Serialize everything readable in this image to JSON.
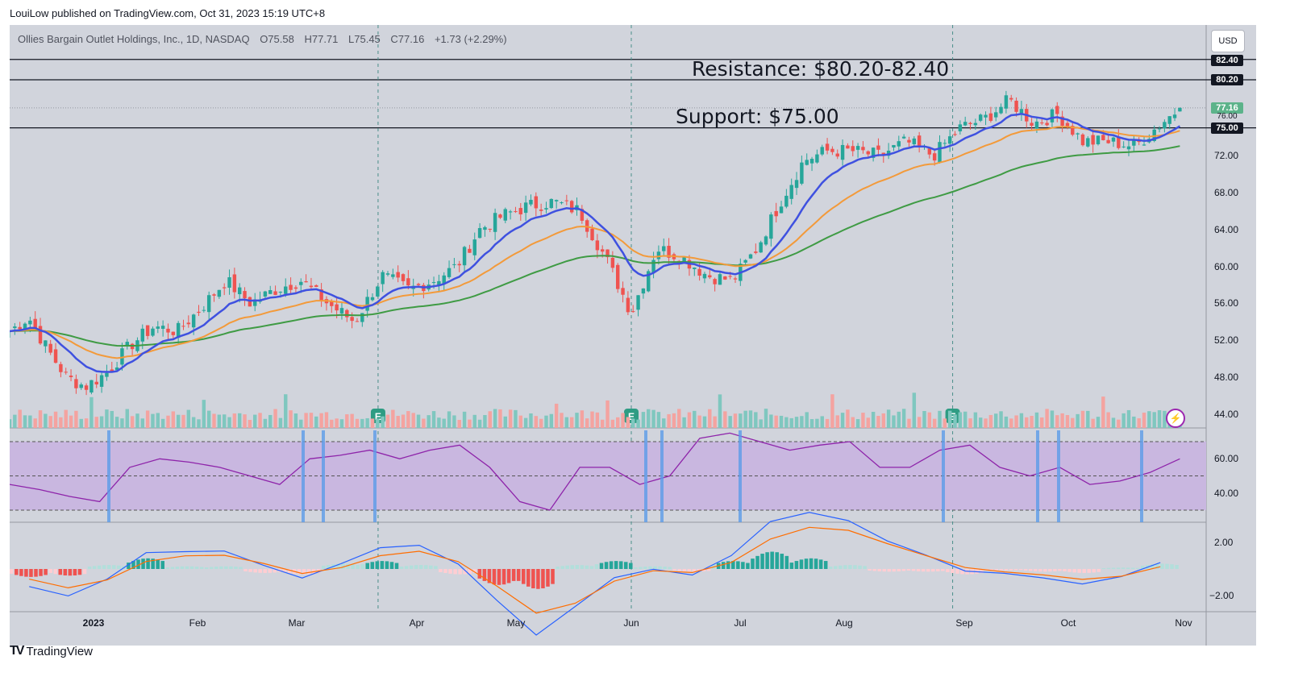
{
  "header": {
    "published_by": "LouiLow published on TradingView.com, Oct 31, 2023 15:19 UTC+8"
  },
  "legend": {
    "symbol": "Ollies Bargain Outlet Holdings, Inc., 1D, NASDAQ",
    "open": "O75.58",
    "high": "H77.71",
    "low": "L75.45",
    "close": "C77.16",
    "change": "+1.73 (+2.29%)"
  },
  "currency_button": "USD",
  "annotations": {
    "resistance": "Resistance: $80.20-82.40",
    "support": "Support: $75.00"
  },
  "price_tags": {
    "r2": "82.40",
    "r1": "80.20",
    "last": "77.16",
    "partial": "76.00",
    "support": "75.00"
  },
  "brand": {
    "name": "TradingView",
    "logo": "TV"
  },
  "colors": {
    "up": "#26a69a",
    "down": "#ef5350",
    "ema_fast": "#3f51e0",
    "ema_mid": "#f39a3a",
    "ema_slow": "#3f9b44",
    "rsi": "#8e24aa",
    "macd": "#2962ff",
    "signal": "#ff6d00"
  },
  "chart_data": [
    {
      "type": "candlestick",
      "title": "Ollies Bargain Outlet Holdings, Inc., 1D, NASDAQ",
      "y_axis_ticks": [
        44,
        48,
        52,
        56,
        60,
        64,
        68,
        72,
        76
      ],
      "ylim": [
        42.8,
        86.3
      ],
      "x_axis_ticks": [
        "2023",
        "Feb",
        "Mar",
        "Apr",
        "May",
        "Jun",
        "Jul",
        "Aug",
        "Sep",
        "Oct",
        "Nov"
      ],
      "horizontal_levels": [
        82.4,
        80.2,
        75.0
      ],
      "last_price": 77.16,
      "earnings_markers": [
        "Mar 22",
        "Jun 1",
        "Aug 29"
      ],
      "approx_close_path": [
        {
          "date": "2022-12-01",
          "close": 53.0
        },
        {
          "date": "2022-12-08",
          "close": 54.5
        },
        {
          "date": "2022-12-15",
          "close": 51.0
        },
        {
          "date": "2022-12-22",
          "close": 48.0
        },
        {
          "date": "2022-12-29",
          "close": 47.0
        },
        {
          "date": "2023-01-05",
          "close": 48.5
        },
        {
          "date": "2023-01-12",
          "close": 51.5
        },
        {
          "date": "2023-01-19",
          "close": 53.5
        },
        {
          "date": "2023-01-26",
          "close": 53.0
        },
        {
          "date": "2023-02-02",
          "close": 55.5
        },
        {
          "date": "2023-02-09",
          "close": 58.5
        },
        {
          "date": "2023-02-16",
          "close": 56.0
        },
        {
          "date": "2023-02-23",
          "close": 57.5
        },
        {
          "date": "2023-03-02",
          "close": 58.5
        },
        {
          "date": "2023-03-09",
          "close": 56.0
        },
        {
          "date": "2023-03-16",
          "close": 54.0
        },
        {
          "date": "2023-03-23",
          "close": 59.0
        },
        {
          "date": "2023-03-30",
          "close": 57.5
        },
        {
          "date": "2023-04-06",
          "close": 58.5
        },
        {
          "date": "2023-04-13",
          "close": 60.0
        },
        {
          "date": "2023-04-20",
          "close": 64.0
        },
        {
          "date": "2023-04-27",
          "close": 65.5
        },
        {
          "date": "2023-05-04",
          "close": 66.5
        },
        {
          "date": "2023-05-11",
          "close": 67.0
        },
        {
          "date": "2023-05-18",
          "close": 66.0
        },
        {
          "date": "2023-05-25",
          "close": 61.0
        },
        {
          "date": "2023-06-01",
          "close": 55.0
        },
        {
          "date": "2023-06-08",
          "close": 62.0
        },
        {
          "date": "2023-06-15",
          "close": 61.0
        },
        {
          "date": "2023-06-22",
          "close": 59.0
        },
        {
          "date": "2023-06-29",
          "close": 58.5
        },
        {
          "date": "2023-07-06",
          "close": 62.0
        },
        {
          "date": "2023-07-13",
          "close": 67.0
        },
        {
          "date": "2023-07-20",
          "close": 71.5
        },
        {
          "date": "2023-07-27",
          "close": 72.5
        },
        {
          "date": "2023-08-03",
          "close": 72.5
        },
        {
          "date": "2023-08-10",
          "close": 72.0
        },
        {
          "date": "2023-08-17",
          "close": 73.5
        },
        {
          "date": "2023-08-24",
          "close": 72.0
        },
        {
          "date": "2023-08-31",
          "close": 75.0
        },
        {
          "date": "2023-09-07",
          "close": 76.0
        },
        {
          "date": "2023-09-14",
          "close": 78.0
        },
        {
          "date": "2023-09-21",
          "close": 75.5
        },
        {
          "date": "2023-09-28",
          "close": 76.5
        },
        {
          "date": "2023-10-05",
          "close": 73.5
        },
        {
          "date": "2023-10-12",
          "close": 73.5
        },
        {
          "date": "2023-10-19",
          "close": 73.0
        },
        {
          "date": "2023-10-26",
          "close": 75.5
        },
        {
          "date": "2023-10-31",
          "close": 77.16
        }
      ]
    },
    {
      "type": "line",
      "title": "",
      "y_axis_ticks": [
        40.0,
        60.0
      ],
      "bands": [
        30,
        50,
        70
      ],
      "approx_values": [
        45,
        42,
        38,
        35,
        55,
        60,
        58,
        55,
        50,
        45,
        60,
        62,
        65,
        60,
        65,
        68,
        55,
        35,
        30,
        55,
        55,
        45,
        50,
        72,
        75,
        70,
        65,
        68,
        70,
        55,
        55,
        65,
        68,
        55,
        50,
        55,
        45,
        47,
        52,
        60
      ]
    },
    {
      "type": "bar",
      "title": "",
      "y_axis_ticks": [
        2.0,
        -2.0
      ],
      "approx_histogram": [
        -0.6,
        -0.5,
        0.3,
        0.8,
        0.2,
        0.2,
        -0.3,
        -0.4,
        0.4,
        0.6,
        0.3,
        -0.4,
        -1.2,
        -1.5,
        0.3,
        0.6,
        0.2,
        -0.2,
        0.6,
        1.3,
        0.8,
        0.3,
        -0.2,
        -0.2,
        -0.4,
        -0.1,
        -0.2,
        -0.3,
        0.1,
        0.4
      ]
    }
  ]
}
